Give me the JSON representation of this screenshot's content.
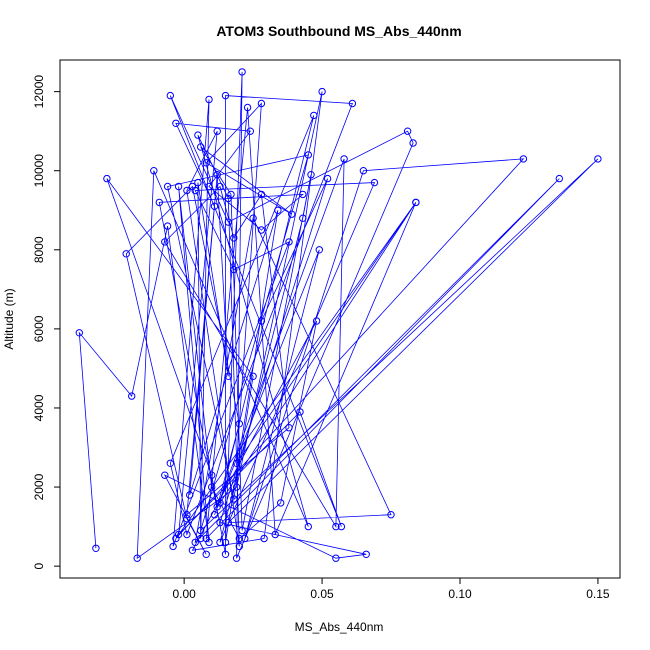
{
  "chart_data": {
    "type": "line",
    "title": "ATOM3 Southbound MS_Abs_440nm",
    "xlabel": "MS_Abs_440nm",
    "ylabel": "Altitude (m)",
    "xlim": [
      -0.045,
      0.158
    ],
    "ylim": [
      -300,
      12800
    ],
    "xticks": [
      0.0,
      0.05,
      0.1,
      0.15
    ],
    "xtick_labels": [
      "0.00",
      "0.05",
      "0.10",
      "0.15"
    ],
    "yticks": [
      0,
      2000,
      4000,
      6000,
      8000,
      10000,
      12000
    ],
    "ytick_labels": [
      "0",
      "2000",
      "4000",
      "6000",
      "8000",
      "10000",
      "12000"
    ],
    "grid": false,
    "legend": "none",
    "series_color": "#0000ff",
    "series": [
      {
        "x": [
          -0.032,
          -0.038,
          -0.019,
          -0.006,
          0.009,
          -0.002,
          0.01,
          0.02,
          0.035,
          0.048,
          0.003,
          0.029,
          0.05,
          0.019,
          -0.017,
          -0.011,
          0.045,
          0.005,
          0.016,
          0.02,
          0.001,
          0.012,
          -0.002,
          0.042,
          0.057,
          -0.005,
          0.016,
          0.081,
          0.083,
          0.019,
          0.021,
          0.015,
          0.034,
          0.002,
          0.011,
          -0.003,
          0.024,
          0.009,
          0.028,
          0.043,
          -0.009,
          0.015,
          0.015,
          0.061,
          0.001,
          -0.005,
          0.047,
          0.013,
          0.084,
          0.019,
          0.028,
          0.008,
          0.039,
          0.006,
          0.017,
          0.021,
          0.046,
          0.043,
          0.013,
          0.069,
          0.004,
          0.018,
          0.038,
          -0.004,
          0.009,
          0.006,
          0.005,
          0.016,
          0.012,
          0.001,
          0.038,
          0.028,
          0.018,
          0.013,
          -0.007,
          0.055,
          0.058,
          0.011,
          0.049,
          0.022,
          0.065,
          0.123,
          -0.003,
          0.084,
          0.033,
          0.023,
          0.008,
          0.136,
          0.004,
          0.025,
          0.075,
          0.016,
          0.15,
          0.006,
          0.045,
          -0.006,
          0.018,
          0.025,
          -0.028,
          0.01,
          0.012,
          0.02,
          0.003,
          -0.021,
          0.001,
          0.008,
          -0.007,
          0.055,
          0.066,
          0.013,
          0.052,
          0.028
        ],
        "y": [
          450,
          5900,
          4300,
          8600,
          600,
          9600,
          2000,
          700,
          1600,
          6200,
          400,
          700,
          12000,
          2000,
          200,
          10000,
          1000,
          10900,
          9300,
          500,
          9500,
          11000,
          800,
          3900,
          1000,
          11900,
          8700,
          11000,
          10700,
          200,
          12500,
          600,
          9000,
          1800,
          9100,
          11200,
          11000,
          9600,
          8500,
          9400,
          9200,
          300,
          11900,
          11700,
          800,
          2600,
          11400,
          1600,
          9200,
          2600,
          11700,
          10200,
          8900,
          10600,
          9400,
          900,
          9900,
          8800,
          600,
          9700,
          9500,
          7500,
          8200,
          500,
          11800,
          700,
          9700,
          4800,
          9900,
          1300,
          3500,
          9400,
          8300,
          9600,
          8200,
          1000,
          10300,
          1300,
          8000,
          700,
          10000,
          10300,
          700,
          9200,
          800,
          11600,
          700,
          9800,
          600,
          8800,
          1300,
          1100,
          10300,
          900,
          10400,
          9600,
          1700,
          4800,
          9800,
          2300,
          1500,
          3600,
          9600,
          7900,
          1200,
          300,
          2300,
          200,
          300,
          1100,
          9800,
          6200
        ]
      }
    ]
  }
}
